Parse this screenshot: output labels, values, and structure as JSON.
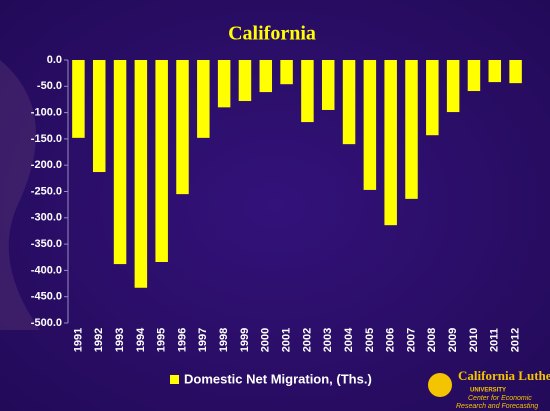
{
  "chart_data": {
    "type": "bar",
    "title": "California",
    "categories": [
      "1991",
      "1992",
      "1993",
      "1994",
      "1995",
      "1996",
      "1997",
      "1998",
      "1999",
      "2000",
      "2001",
      "2002",
      "2003",
      "2004",
      "2005",
      "2006",
      "2007",
      "2008",
      "2009",
      "2010",
      "2011",
      "2012"
    ],
    "series": [
      {
        "name": "Domestic Net Migration, (Ths.)",
        "color": "#ffff00",
        "values": [
          -148,
          -213,
          -388,
          -433,
          -384,
          -255,
          -148,
          -90,
          -78,
          -61,
          -46,
          -118,
          -95,
          -160,
          -247,
          -314,
          -264,
          -143,
          -99,
          -59,
          -42,
          -44
        ]
      }
    ],
    "ylim": [
      -500,
      0
    ],
    "yticks": [
      {
        "value": 0,
        "label": "0.0"
      },
      {
        "value": -50,
        "label": "-50.0"
      },
      {
        "value": -100,
        "label": "-100.0"
      },
      {
        "value": -150,
        "label": "-150.0"
      },
      {
        "value": -200,
        "label": "-200.0"
      },
      {
        "value": -250,
        "label": "-250.0"
      },
      {
        "value": -300,
        "label": "-300.0"
      },
      {
        "value": -350,
        "label": "-350.0"
      },
      {
        "value": -400,
        "label": "-400.0"
      },
      {
        "value": -450,
        "label": "-450.0"
      },
      {
        "value": -500,
        "label": "-500.0"
      }
    ],
    "grid": false,
    "legend": "bottom"
  },
  "logo": {
    "name": "California Lutheran",
    "sub": "UNIVERSITY",
    "center": "Center for Economic",
    "center2": "Research and Forecasting"
  }
}
